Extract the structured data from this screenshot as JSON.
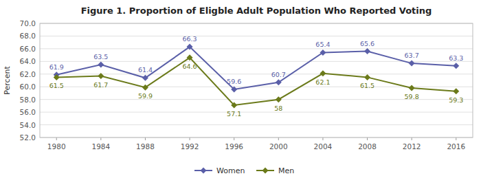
{
  "chart_data": {
    "type": "line",
    "title": "Figure 1. Proportion of Eligble Adult Population Who Reported Voting",
    "y_label": "Percent",
    "x": [
      1980,
      1984,
      1988,
      1992,
      1996,
      2000,
      2004,
      2008,
      2012,
      2016
    ],
    "series": [
      {
        "name": "Women",
        "color": "#5a5fa8",
        "marker": "diamond",
        "line_style": "solid",
        "values": [
          61.9,
          63.5,
          61.4,
          66.3,
          59.6,
          60.7,
          65.4,
          65.6,
          63.7,
          63.3
        ]
      },
      {
        "name": "Men",
        "color": "#6b7a1a",
        "marker": "diamond",
        "line_style": "solid",
        "values": [
          61.5,
          61.7,
          59.9,
          64.6,
          57.1,
          58.0,
          62.1,
          61.5,
          59.8,
          59.3
        ]
      }
    ],
    "xlim": [
      1978.5,
      2017.5
    ],
    "xticks": [
      1980,
      1984,
      1988,
      1992,
      1996,
      2000,
      2004,
      2008,
      2012,
      2016
    ],
    "ylim": [
      52.0,
      70.0
    ],
    "yticks": [
      {
        "value": 52,
        "label": "52.0"
      },
      {
        "value": 54,
        "label": "54.0"
      },
      {
        "value": 56,
        "label": "56.0"
      },
      {
        "value": 58,
        "label": "58.0"
      },
      {
        "value": 60,
        "label": "60.0"
      },
      {
        "value": 62,
        "label": "62.0"
      },
      {
        "value": 64,
        "label": "64.0"
      },
      {
        "value": 66,
        "label": "66.0"
      },
      {
        "value": 68,
        "label": "68.0"
      },
      {
        "value": 70,
        "label": "70.0"
      }
    ],
    "grid": true,
    "legend": "bottom",
    "data_labels": true
  }
}
